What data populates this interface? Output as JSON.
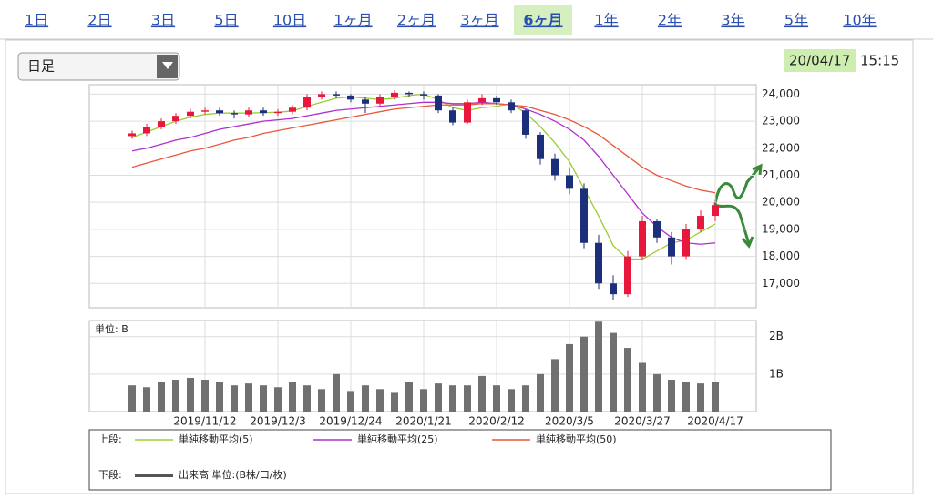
{
  "tabs": [
    "1日",
    "2日",
    "3日",
    "5日",
    "10日",
    "1ヶ月",
    "2ヶ月",
    "3ヶ月",
    "6ヶ月",
    "1年",
    "2年",
    "3年",
    "5年",
    "10年"
  ],
  "selected_tab_index": 8,
  "dropdown": "日足",
  "timestamp": {
    "date": "20/04/17",
    "time": "15:15"
  },
  "chart_data": [
    {
      "type": "candlestick",
      "categories": [
        null,
        null,
        null,
        null,
        null,
        "2019/11/12",
        null,
        null,
        null,
        null,
        "2019/12/3",
        null,
        null,
        null,
        null,
        "2019/12/24",
        null,
        null,
        null,
        null,
        "2020/1/21",
        null,
        null,
        null,
        null,
        "2020/2/12",
        null,
        null,
        null,
        null,
        "2020/3/5",
        null,
        null,
        null,
        null,
        "2020/3/27",
        null,
        null,
        null,
        null,
        "2020/4/17"
      ],
      "open": [
        22450,
        22550,
        22800,
        23000,
        23200,
        23350,
        23400,
        23300,
        23250,
        23400,
        23300,
        23350,
        23500,
        23900,
        24000,
        23950,
        23800,
        23650,
        23900,
        24050,
        24000,
        23950,
        23400,
        22950,
        23700,
        23850,
        23700,
        23400,
        22500,
        21600,
        21000,
        20500,
        18500,
        17000,
        16600,
        18000,
        19300,
        18700,
        18000,
        19000,
        19500
      ],
      "high": [
        22650,
        22900,
        23100,
        23300,
        23450,
        23500,
        23500,
        23400,
        23500,
        23500,
        23450,
        23600,
        24000,
        24100,
        24100,
        24000,
        23900,
        24000,
        24150,
        24100,
        24100,
        24000,
        23500,
        23800,
        24000,
        23950,
        23800,
        23450,
        22600,
        21800,
        21300,
        20700,
        18800,
        17300,
        18200,
        19500,
        19400,
        18900,
        19200,
        19700,
        20000
      ],
      "low": [
        22350,
        22450,
        22700,
        22900,
        23100,
        23250,
        23200,
        23100,
        23150,
        23200,
        23200,
        23250,
        23400,
        23800,
        23850,
        23700,
        23300,
        23550,
        23800,
        23900,
        23800,
        23300,
        22850,
        22900,
        23600,
        23600,
        23300,
        22350,
        21400,
        20800,
        20300,
        18300,
        16800,
        16400,
        16500,
        17900,
        18500,
        17700,
        17900,
        18900,
        19300
      ],
      "close": [
        22550,
        22800,
        23000,
        23200,
        23350,
        23400,
        23300,
        23250,
        23400,
        23300,
        23350,
        23500,
        23900,
        24000,
        23950,
        23800,
        23650,
        23900,
        24050,
        24000,
        23950,
        23400,
        22950,
        23700,
        23850,
        23700,
        23400,
        22500,
        21600,
        21000,
        20500,
        18500,
        17000,
        16600,
        18000,
        19300,
        18700,
        18000,
        19000,
        19500,
        19900
      ],
      "up_color": "#e8173c",
      "down_color": "#1c2f7a",
      "series": [
        {
          "name": "単純移動平均(5)",
          "color": "#9acd32",
          "values": [
            22400,
            22600,
            22800,
            23000,
            23150,
            23250,
            23300,
            23300,
            23300,
            23320,
            23330,
            23380,
            23550,
            23700,
            23850,
            23900,
            23850,
            23800,
            23850,
            23950,
            24000,
            23800,
            23500,
            23400,
            23500,
            23550,
            23650,
            23300,
            22800,
            22200,
            21500,
            20500,
            19500,
            18400,
            17900,
            17900,
            18200,
            18500,
            18600,
            18900,
            19200
          ]
        },
        {
          "name": "単純移動平均(25)",
          "color": "#b030d0",
          "values": [
            21900,
            22000,
            22150,
            22300,
            22400,
            22550,
            22700,
            22800,
            22900,
            23000,
            23050,
            23100,
            23200,
            23300,
            23400,
            23450,
            23500,
            23550,
            23600,
            23650,
            23700,
            23700,
            23650,
            23650,
            23700,
            23650,
            23600,
            23450,
            23250,
            23000,
            22700,
            22300,
            21700,
            21000,
            20300,
            19600,
            19100,
            18700,
            18500,
            18450,
            18500
          ]
        },
        {
          "name": "単純移動平均(50)",
          "color": "#e8583a",
          "values": [
            21300,
            21450,
            21600,
            21750,
            21900,
            22000,
            22150,
            22300,
            22400,
            22550,
            22650,
            22750,
            22850,
            22950,
            23050,
            23150,
            23250,
            23350,
            23450,
            23500,
            23550,
            23600,
            23600,
            23600,
            23650,
            23650,
            23600,
            23550,
            23400,
            23250,
            23050,
            22800,
            22500,
            22100,
            21700,
            21300,
            21000,
            20800,
            20600,
            20450,
            20350
          ]
        }
      ],
      "ylim": [
        16100,
        24350
      ],
      "yticks": [
        {
          "value": 17000,
          "label": "17,000"
        },
        {
          "value": 18000,
          "label": "18,000"
        },
        {
          "value": 19000,
          "label": "19,000"
        },
        {
          "value": 20000,
          "label": "20,000"
        },
        {
          "value": 21000,
          "label": "21,000"
        },
        {
          "value": 22000,
          "label": "22,000"
        },
        {
          "value": 23000,
          "label": "23,000"
        },
        {
          "value": 24000,
          "label": "24,000"
        }
      ],
      "grid": true
    },
    {
      "type": "bar",
      "unit_label": "単位: B",
      "color": "#707070",
      "values": [
        0.7,
        0.65,
        0.8,
        0.85,
        0.9,
        0.85,
        0.8,
        0.7,
        0.75,
        0.7,
        0.65,
        0.8,
        0.7,
        0.6,
        1.0,
        0.55,
        0.7,
        0.6,
        0.5,
        0.8,
        0.6,
        0.75,
        0.7,
        0.7,
        0.95,
        0.7,
        0.6,
        0.7,
        1.0,
        1.4,
        1.8,
        2.0,
        2.4,
        2.1,
        1.7,
        1.3,
        1.0,
        0.85,
        0.8,
        0.75,
        0.8
      ],
      "ylim": [
        0,
        2.43
      ],
      "yticks": [
        {
          "value": 1,
          "label": "1B"
        },
        {
          "value": 2,
          "label": "2B"
        }
      ],
      "grid": true
    }
  ],
  "legend": {
    "upper_label": "上段:",
    "lower_label": "下段:",
    "lower_text": "出来高 単位:(B株/口/枚)"
  }
}
